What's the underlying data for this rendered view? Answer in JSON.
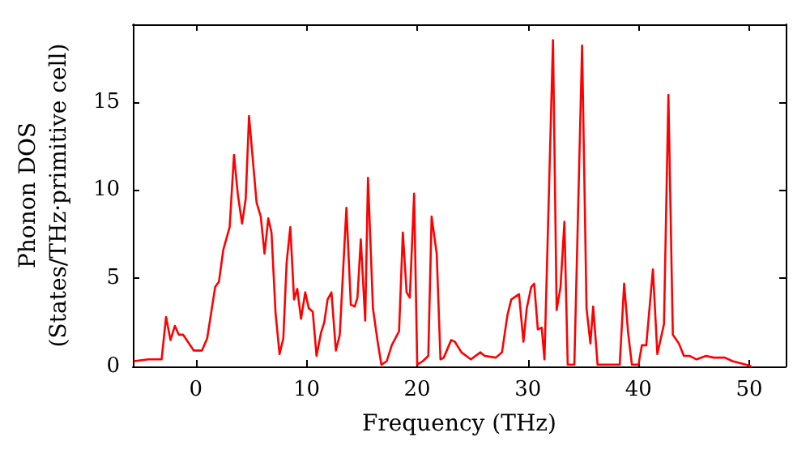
{
  "chart_data": {
    "type": "line",
    "xlabel": "Frequency (THz)",
    "ylabel": "Phonon DOS\n(States/THz·primitive cell)",
    "x": [
      -5.6,
      -4.3,
      -3.1,
      -2.7,
      -2.3,
      -1.9,
      -1.55,
      -1.16,
      -0.19,
      0.54,
      1.02,
      1.74,
      2.08,
      2.47,
      3.05,
      3.44,
      3.78,
      4.17,
      4.5,
      4.8,
      5.48,
      5.86,
      6.2,
      6.54,
      6.83,
      7.2,
      7.56,
      7.9,
      8.2,
      8.53,
      8.87,
      9.16,
      9.5,
      9.88,
      10.2,
      10.56,
      10.9,
      11.3,
      11.6,
      11.9,
      12.25,
      12.65,
      13.0,
      13.6,
      14.0,
      14.35,
      14.6,
      14.9,
      15.3,
      15.55,
      16.0,
      16.4,
      16.76,
      17.25,
      17.7,
      18.36,
      18.7,
      19.04,
      19.33,
      19.72,
      20.0,
      20.5,
      21.0,
      21.3,
      21.76,
      22.1,
      22.4,
      23.07,
      23.4,
      24.0,
      24.85,
      25.7,
      26.1,
      27.1,
      27.66,
      28.15,
      28.5,
      29.2,
      29.6,
      29.9,
      30.3,
      30.57,
      30.9,
      31.25,
      31.5,
      32.27,
      32.6,
      32.95,
      33.3,
      33.6,
      34.2,
      34.9,
      35.3,
      35.65,
      35.9,
      36.3,
      38.3,
      38.7,
      39.06,
      39.4,
      40.0,
      40.3,
      40.7,
      41.3,
      41.7,
      42.3,
      42.7,
      43.1,
      43.65,
      44.1,
      44.6,
      45.25,
      46.1,
      46.8,
      47.8,
      48.5,
      49.7,
      50.2
    ],
    "series": [
      {
        "color": "#ff0000",
        "values": [
          0.3,
          0.4,
          0.4,
          2.8,
          1.5,
          2.3,
          1.8,
          1.8,
          0.9,
          0.9,
          1.6,
          4.5,
          4.8,
          6.6,
          7.9,
          12.0,
          9.8,
          8.1,
          9.5,
          14.2,
          9.3,
          8.5,
          6.4,
          8.4,
          7.6,
          3.0,
          0.7,
          1.6,
          5.9,
          7.9,
          3.8,
          4.4,
          2.7,
          4.2,
          3.3,
          3.1,
          0.6,
          1.9,
          2.5,
          3.8,
          4.2,
          0.9,
          1.8,
          9.0,
          3.5,
          3.4,
          3.9,
          7.2,
          2.6,
          10.7,
          3.3,
          1.5,
          0.1,
          0.3,
          1.2,
          2.0,
          7.6,
          4.2,
          3.9,
          9.8,
          0.1,
          0.3,
          0.6,
          8.5,
          6.4,
          0.4,
          0.5,
          1.5,
          1.4,
          0.8,
          0.4,
          0.8,
          0.6,
          0.5,
          0.8,
          2.9,
          3.8,
          4.1,
          1.4,
          3.3,
          4.5,
          4.7,
          2.1,
          2.2,
          0.4,
          18.5,
          3.2,
          4.5,
          8.2,
          0.1,
          0.1,
          18.2,
          3.3,
          1.3,
          3.4,
          0.1,
          0.1,
          4.7,
          1.9,
          0.1,
          0.1,
          1.2,
          1.2,
          5.5,
          0.7,
          2.4,
          15.4,
          1.8,
          1.3,
          0.6,
          0.6,
          0.4,
          0.6,
          0.5,
          0.5,
          0.3,
          0.1,
          0.0
        ]
      }
    ],
    "xlim": [
      -5.7,
      53.3
    ],
    "ylim": [
      0,
      19.4
    ],
    "xticks": [
      0,
      10,
      20,
      30,
      40,
      50
    ],
    "yticks": [
      0,
      5,
      10,
      15
    ],
    "grid": false,
    "marker": "none",
    "line_style": "solid"
  }
}
